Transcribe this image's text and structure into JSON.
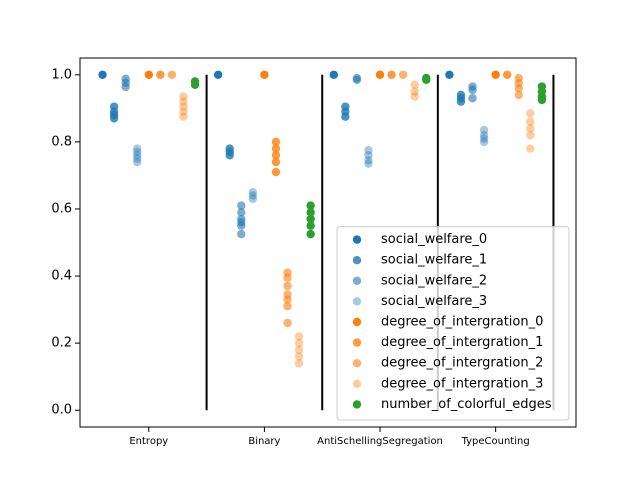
{
  "chart_data": {
    "type": "scatter",
    "xlim": [
      -0.595,
      3.695
    ],
    "ylim": [
      -0.05,
      1.05
    ],
    "xticks": [
      {
        "value": 0,
        "label": "Entropy"
      },
      {
        "value": 1,
        "label": "Binary"
      },
      {
        "value": 2,
        "label": "AntiSchellingSegregation"
      },
      {
        "value": 3,
        "label": "TypeCounting"
      }
    ],
    "yticks": [
      {
        "value": 0,
        "label": "0.0"
      },
      {
        "value": 0.2,
        "label": "0.2"
      },
      {
        "value": 0.4,
        "label": "0.4"
      },
      {
        "value": 0.6,
        "label": "0.6"
      },
      {
        "value": 0.8,
        "label": "0.8"
      },
      {
        "value": 1,
        "label": "1.0"
      }
    ],
    "separators": [
      0.5,
      1.5,
      2.5,
      3.5
    ],
    "separator_range": [
      0,
      1
    ],
    "separator_color": "#000000",
    "legend": "lower right",
    "series": [
      {
        "name": "social_welfare_0",
        "color": "#1f77b4",
        "alpha": 1,
        "x": [
          -0.4,
          0.6,
          1.6,
          2.6
        ],
        "y": [
          1,
          1,
          1,
          1
        ]
      },
      {
        "name": "social_welfare_1",
        "color": "#1f77b4",
        "alpha": 0.8,
        "x": [
          -0.3,
          -0.3,
          -0.3,
          -0.3,
          0.7,
          0.7,
          0.7,
          1.7,
          1.7,
          1.7,
          2.7,
          2.7,
          2.7
        ],
        "y": [
          0.905,
          0.89,
          0.88,
          0.87,
          0.78,
          0.77,
          0.76,
          0.905,
          0.89,
          0.875,
          0.94,
          0.93,
          0.92
        ]
      },
      {
        "name": "social_welfare_2",
        "color": "#1f77b4",
        "alpha": 0.6,
        "x": [
          -0.2,
          -0.2,
          -0.2,
          0.8,
          0.8,
          0.8,
          0.8,
          0.8,
          0.8,
          1.8,
          1.8,
          2.8,
          2.8,
          2.8
        ],
        "y": [
          0.988,
          0.976,
          0.964,
          0.61,
          0.59,
          0.57,
          0.56,
          0.55,
          0.525,
          0.99,
          0.985,
          0.965,
          0.955,
          0.93
        ]
      },
      {
        "name": "social_welfare_3",
        "color": "#1f77b4",
        "alpha": 0.4,
        "x": [
          -0.1,
          -0.1,
          -0.1,
          -0.1,
          -0.1,
          0.9,
          0.9,
          0.9,
          1.9,
          1.9,
          1.9,
          1.9,
          2.9,
          2.9,
          2.9,
          2.9
        ],
        "y": [
          0.78,
          0.77,
          0.76,
          0.75,
          0.74,
          0.65,
          0.64,
          0.63,
          0.775,
          0.76,
          0.745,
          0.735,
          0.835,
          0.82,
          0.81,
          0.8
        ]
      },
      {
        "name": "degree_of_intergration_0",
        "color": "#ff7f0e",
        "alpha": 1,
        "x": [
          0,
          1,
          2,
          3
        ],
        "y": [
          1,
          1,
          1,
          1
        ]
      },
      {
        "name": "degree_of_intergration_1",
        "color": "#ff7f0e",
        "alpha": 0.8,
        "x": [
          0.1,
          1.1,
          1.1,
          1.1,
          1.1,
          1.1,
          2.1,
          3.1
        ],
        "y": [
          1,
          0.8,
          0.78,
          0.76,
          0.74,
          0.71,
          1,
          1
        ]
      },
      {
        "name": "degree_of_intergration_2",
        "color": "#ff7f0e",
        "alpha": 0.6,
        "x": [
          0.2,
          1.2,
          1.2,
          1.2,
          1.2,
          1.2,
          1.2,
          1.2,
          2.2,
          3.2,
          3.2,
          3.2,
          3.2
        ],
        "y": [
          1,
          0.41,
          0.395,
          0.37,
          0.345,
          0.33,
          0.31,
          0.26,
          1,
          0.99,
          0.975,
          0.96,
          0.94
        ]
      },
      {
        "name": "degree_of_intergration_3",
        "color": "#ff7f0e",
        "alpha": 0.4,
        "x": [
          0.3,
          0.3,
          0.3,
          0.3,
          0.3,
          1.3,
          1.3,
          1.3,
          1.3,
          1.3,
          2.3,
          2.3,
          2.3,
          3.3,
          3.3,
          3.3,
          3.3,
          3.3
        ],
        "y": [
          0.935,
          0.92,
          0.905,
          0.89,
          0.875,
          0.22,
          0.2,
          0.18,
          0.16,
          0.14,
          0.97,
          0.95,
          0.935,
          0.885,
          0.86,
          0.84,
          0.82,
          0.78
        ]
      },
      {
        "name": "number_of_colorful_edges",
        "color": "#2ca02c",
        "alpha": 1,
        "x": [
          0.4,
          0.4,
          1.4,
          1.4,
          1.4,
          1.4,
          1.4,
          2.4,
          2.4,
          3.4,
          3.4,
          3.4,
          3.4
        ],
        "y": [
          0.98,
          0.97,
          0.61,
          0.59,
          0.57,
          0.55,
          0.525,
          0.99,
          0.985,
          0.965,
          0.95,
          0.935,
          0.925
        ]
      }
    ]
  }
}
